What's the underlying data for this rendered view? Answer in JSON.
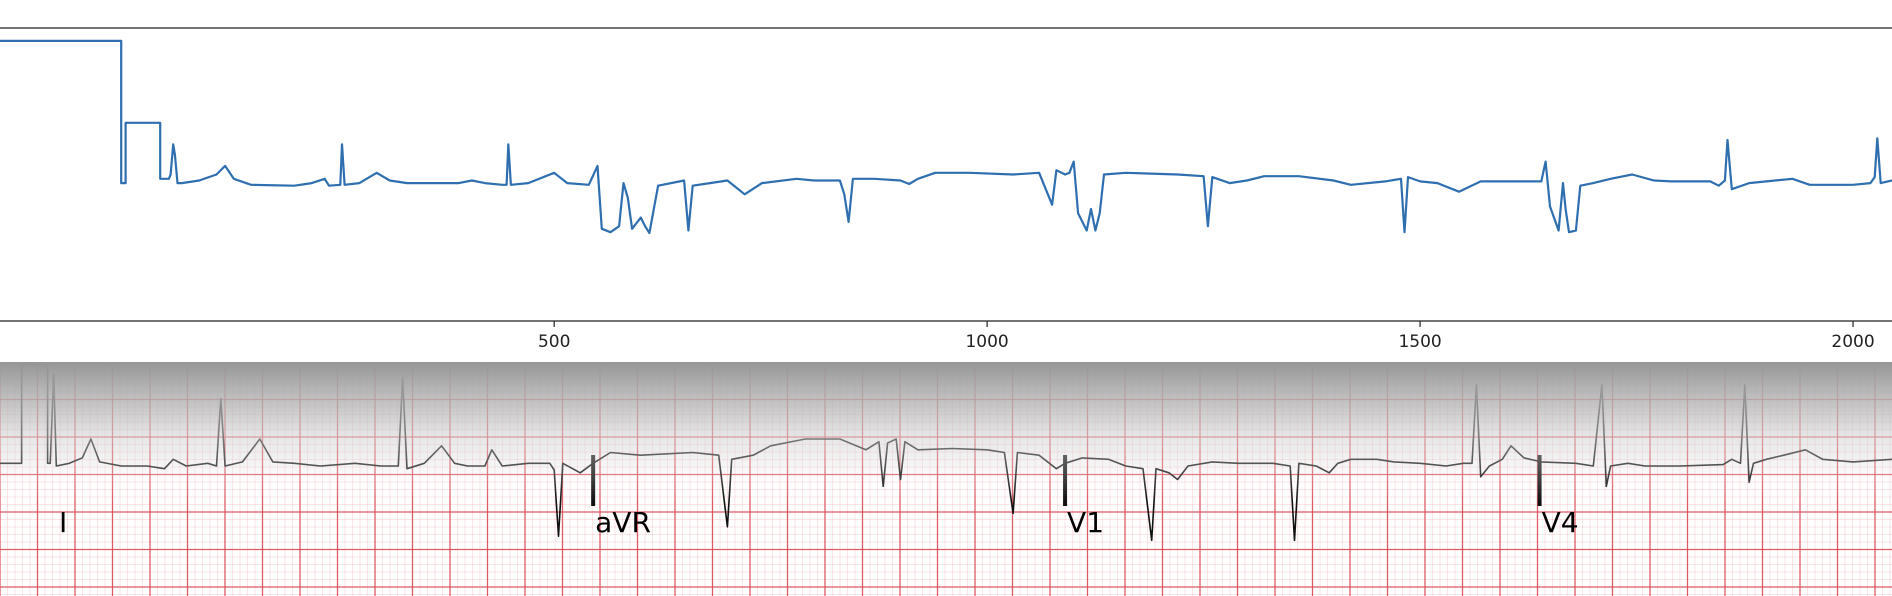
{
  "chart_data": [
    {
      "type": "line",
      "xlim": [
        -140,
        2045
      ],
      "ylim": [
        -0.75,
        2.65
      ],
      "xticks": [
        500,
        1000,
        1500,
        2000
      ],
      "xlabel": "",
      "ylabel": "",
      "grid": false,
      "color": "#2f6fb0",
      "series_points": [
        [
          -140,
          2.5
        ],
        [
          0,
          2.5
        ],
        [
          0,
          0.85
        ],
        [
          5,
          0.85
        ],
        [
          5,
          1.55
        ],
        [
          45,
          1.55
        ],
        [
          45,
          0.9
        ],
        [
          55,
          0.9
        ],
        [
          57,
          0.95
        ],
        [
          60,
          1.3
        ],
        [
          62,
          1.18
        ],
        [
          65,
          0.85
        ],
        [
          70,
          0.85
        ],
        [
          90,
          0.88
        ],
        [
          110,
          0.95
        ],
        [
          120,
          1.05
        ],
        [
          130,
          0.9
        ],
        [
          150,
          0.83
        ],
        [
          200,
          0.82
        ],
        [
          220,
          0.85
        ],
        [
          235,
          0.9
        ],
        [
          240,
          0.82
        ],
        [
          253,
          0.83
        ],
        [
          255,
          1.3
        ],
        [
          258,
          0.83
        ],
        [
          275,
          0.85
        ],
        [
          295,
          0.97
        ],
        [
          310,
          0.88
        ],
        [
          330,
          0.85
        ],
        [
          390,
          0.85
        ],
        [
          405,
          0.88
        ],
        [
          420,
          0.85
        ],
        [
          440,
          0.83
        ],
        [
          445,
          0.83
        ],
        [
          447,
          1.3
        ],
        [
          450,
          0.83
        ],
        [
          470,
          0.85
        ],
        [
          500,
          0.97
        ],
        [
          515,
          0.85
        ],
        [
          540,
          0.83
        ],
        [
          550,
          1.05
        ],
        [
          555,
          0.32
        ],
        [
          565,
          0.28
        ],
        [
          575,
          0.35
        ],
        [
          580,
          0.85
        ],
        [
          585,
          0.68
        ],
        [
          590,
          0.32
        ],
        [
          600,
          0.45
        ],
        [
          605,
          0.35
        ],
        [
          610,
          0.27
        ],
        [
          620,
          0.82
        ],
        [
          650,
          0.88
        ],
        [
          655,
          0.3
        ],
        [
          660,
          0.82
        ],
        [
          680,
          0.85
        ],
        [
          700,
          0.88
        ],
        [
          720,
          0.72
        ],
        [
          740,
          0.85
        ],
        [
          780,
          0.9
        ],
        [
          800,
          0.88
        ],
        [
          830,
          0.88
        ],
        [
          835,
          0.72
        ],
        [
          840,
          0.4
        ],
        [
          845,
          0.9
        ],
        [
          870,
          0.9
        ],
        [
          900,
          0.88
        ],
        [
          910,
          0.84
        ],
        [
          920,
          0.9
        ],
        [
          940,
          0.97
        ],
        [
          980,
          0.97
        ],
        [
          1030,
          0.95
        ],
        [
          1060,
          0.97
        ],
        [
          1075,
          0.6
        ],
        [
          1080,
          1.0
        ],
        [
          1090,
          0.95
        ],
        [
          1095,
          0.97
        ],
        [
          1100,
          1.1
        ],
        [
          1105,
          0.5
        ],
        [
          1115,
          0.3
        ],
        [
          1120,
          0.55
        ],
        [
          1125,
          0.3
        ],
        [
          1130,
          0.5
        ],
        [
          1135,
          0.95
        ],
        [
          1160,
          0.97
        ],
        [
          1220,
          0.95
        ],
        [
          1250,
          0.93
        ],
        [
          1255,
          0.35
        ],
        [
          1260,
          0.92
        ],
        [
          1280,
          0.85
        ],
        [
          1300,
          0.88
        ],
        [
          1320,
          0.93
        ],
        [
          1360,
          0.93
        ],
        [
          1400,
          0.88
        ],
        [
          1420,
          0.83
        ],
        [
          1460,
          0.87
        ],
        [
          1478,
          0.9
        ],
        [
          1482,
          0.28
        ],
        [
          1486,
          0.92
        ],
        [
          1500,
          0.87
        ],
        [
          1520,
          0.85
        ],
        [
          1545,
          0.75
        ],
        [
          1570,
          0.87
        ],
        [
          1610,
          0.87
        ],
        [
          1640,
          0.87
        ],
        [
          1645,
          1.1
        ],
        [
          1650,
          0.58
        ],
        [
          1660,
          0.3
        ],
        [
          1665,
          0.85
        ],
        [
          1668,
          0.55
        ],
        [
          1672,
          0.28
        ],
        [
          1680,
          0.3
        ],
        [
          1685,
          0.82
        ],
        [
          1700,
          0.85
        ],
        [
          1720,
          0.9
        ],
        [
          1745,
          0.95
        ],
        [
          1770,
          0.88
        ],
        [
          1790,
          0.87
        ],
        [
          1835,
          0.87
        ],
        [
          1845,
          0.82
        ],
        [
          1852,
          0.88
        ],
        [
          1855,
          1.35
        ],
        [
          1860,
          0.78
        ],
        [
          1880,
          0.85
        ],
        [
          1910,
          0.88
        ],
        [
          1930,
          0.9
        ],
        [
          1950,
          0.83
        ],
        [
          2000,
          0.83
        ],
        [
          2020,
          0.85
        ],
        [
          2025,
          0.92
        ],
        [
          2028,
          1.37
        ],
        [
          2032,
          0.85
        ],
        [
          2045,
          0.88
        ]
      ]
    },
    {
      "type": "line",
      "xlim": [
        -140,
        2045
      ],
      "ylim": [
        -0.75,
        2.65
      ],
      "color": "#111111",
      "grid_color": "#d9434f",
      "lead_labels": [
        "I",
        "aVR",
        "V1",
        "V4"
      ],
      "lead_boundaries": [
        -140,
        545,
        1090,
        1638
      ],
      "series_points": [
        [
          -140,
          0.92
        ],
        [
          -115,
          0.92
        ],
        [
          -115,
          1.65
        ],
        [
          -85,
          1.65
        ],
        [
          -85,
          0.92
        ],
        [
          -82,
          0.92
        ],
        [
          -78,
          1.58
        ],
        [
          -75,
          0.9
        ],
        [
          -60,
          0.92
        ],
        [
          -45,
          0.96
        ],
        [
          -35,
          1.1
        ],
        [
          -25,
          0.93
        ],
        [
          0,
          0.9
        ],
        [
          30,
          0.9
        ],
        [
          50,
          0.88
        ],
        [
          60,
          0.95
        ],
        [
          75,
          0.9
        ],
        [
          100,
          0.92
        ],
        [
          110,
          0.9
        ],
        [
          115,
          1.4
        ],
        [
          120,
          0.9
        ],
        [
          140,
          0.93
        ],
        [
          160,
          1.1
        ],
        [
          175,
          0.93
        ],
        [
          200,
          0.92
        ],
        [
          230,
          0.9
        ],
        [
          270,
          0.92
        ],
        [
          300,
          0.9
        ],
        [
          320,
          0.9
        ],
        [
          325,
          1.55
        ],
        [
          330,
          0.88
        ],
        [
          350,
          0.92
        ],
        [
          370,
          1.05
        ],
        [
          385,
          0.92
        ],
        [
          400,
          0.9
        ],
        [
          420,
          0.9
        ],
        [
          428,
          1.02
        ],
        [
          440,
          0.9
        ],
        [
          470,
          0.92
        ],
        [
          495,
          0.92
        ],
        [
          500,
          0.87
        ],
        [
          505,
          0.38
        ],
        [
          510,
          0.92
        ],
        [
          530,
          0.85
        ],
        [
          545,
          0.92
        ],
        [
          565,
          1.0
        ],
        [
          600,
          0.98
        ],
        [
          660,
          1.0
        ],
        [
          690,
          0.98
        ],
        [
          700,
          0.45
        ],
        [
          705,
          0.95
        ],
        [
          730,
          0.98
        ],
        [
          750,
          1.05
        ],
        [
          790,
          1.1
        ],
        [
          830,
          1.1
        ],
        [
          860,
          1.02
        ],
        [
          875,
          1.08
        ],
        [
          880,
          0.75
        ],
        [
          885,
          1.07
        ],
        [
          895,
          1.1
        ],
        [
          900,
          0.8
        ],
        [
          905,
          1.08
        ],
        [
          920,
          1.02
        ],
        [
          960,
          1.03
        ],
        [
          1000,
          1.02
        ],
        [
          1020,
          1.0
        ],
        [
          1030,
          0.55
        ],
        [
          1035,
          1.0
        ],
        [
          1060,
          0.98
        ],
        [
          1080,
          0.88
        ],
        [
          1090,
          0.92
        ],
        [
          1110,
          0.96
        ],
        [
          1140,
          0.95
        ],
        [
          1160,
          0.9
        ],
        [
          1180,
          0.88
        ],
        [
          1190,
          0.35
        ],
        [
          1195,
          0.88
        ],
        [
          1210,
          0.85
        ],
        [
          1220,
          0.8
        ],
        [
          1232,
          0.9
        ],
        [
          1260,
          0.93
        ],
        [
          1290,
          0.92
        ],
        [
          1330,
          0.92
        ],
        [
          1350,
          0.9
        ],
        [
          1355,
          0.35
        ],
        [
          1360,
          0.92
        ],
        [
          1380,
          0.9
        ],
        [
          1395,
          0.85
        ],
        [
          1405,
          0.92
        ],
        [
          1420,
          0.95
        ],
        [
          1450,
          0.95
        ],
        [
          1470,
          0.93
        ],
        [
          1500,
          0.92
        ],
        [
          1530,
          0.9
        ],
        [
          1550,
          0.92
        ],
        [
          1560,
          0.92
        ],
        [
          1565,
          1.5
        ],
        [
          1570,
          0.82
        ],
        [
          1580,
          0.9
        ],
        [
          1595,
          0.95
        ],
        [
          1605,
          1.05
        ],
        [
          1620,
          0.96
        ],
        [
          1640,
          0.93
        ],
        [
          1680,
          0.92
        ],
        [
          1700,
          0.9
        ],
        [
          1710,
          1.5
        ],
        [
          1715,
          0.75
        ],
        [
          1720,
          0.9
        ],
        [
          1740,
          0.92
        ],
        [
          1760,
          0.9
        ],
        [
          1800,
          0.9
        ],
        [
          1850,
          0.91
        ],
        [
          1860,
          0.95
        ],
        [
          1870,
          0.92
        ],
        [
          1875,
          1.5
        ],
        [
          1880,
          0.78
        ],
        [
          1885,
          0.92
        ],
        [
          1900,
          0.95
        ],
        [
          1920,
          0.98
        ],
        [
          1945,
          1.02
        ],
        [
          1965,
          0.95
        ],
        [
          2000,
          0.93
        ],
        [
          2045,
          0.95
        ]
      ]
    }
  ]
}
